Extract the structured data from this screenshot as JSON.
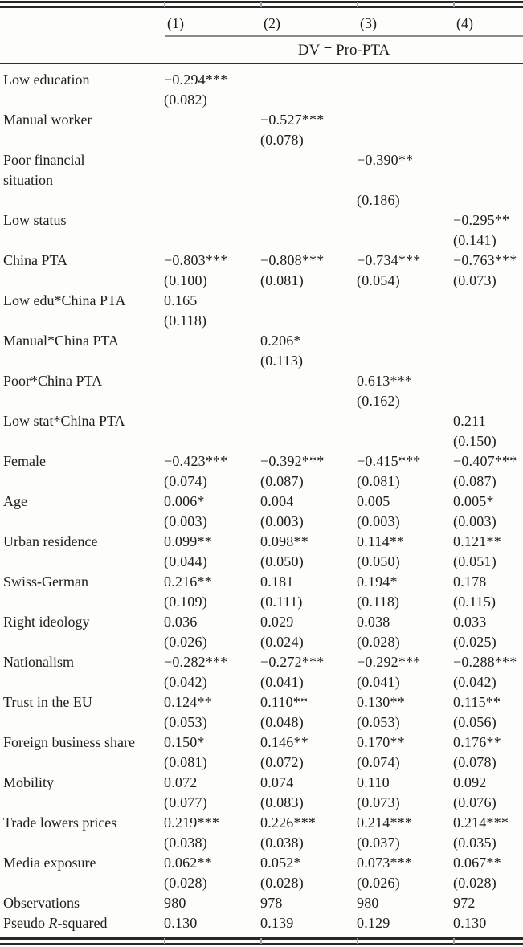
{
  "table": {
    "columns": [
      "(1)",
      "(2)",
      "(3)",
      "(4)"
    ],
    "dv_header": "DV = Pro-PTA",
    "rows": [
      {
        "label": "Low education",
        "est": [
          "−0.294***",
          "",
          "",
          ""
        ],
        "se": [
          "(0.082)",
          "",
          "",
          ""
        ]
      },
      {
        "label": "Manual worker",
        "est": [
          "",
          "−0.527***",
          "",
          ""
        ],
        "se": [
          "",
          "(0.078)",
          "",
          ""
        ]
      },
      {
        "label": "Poor financial",
        "label2": "situation",
        "est": [
          "",
          "",
          "−0.390**",
          ""
        ],
        "se": [
          "",
          "",
          "(0.186)",
          ""
        ]
      },
      {
        "label": "Low status",
        "est": [
          "",
          "",
          "",
          "−0.295**"
        ],
        "se": [
          "",
          "",
          "",
          "(0.141)"
        ]
      },
      {
        "label": "China PTA",
        "est": [
          "−0.803***",
          "−0.808***",
          "−0.734***",
          "−0.763***"
        ],
        "se": [
          "(0.100)",
          "(0.081)",
          "(0.054)",
          "(0.073)"
        ]
      },
      {
        "label": "Low edu*China PTA",
        "est": [
          "0.165",
          "",
          "",
          ""
        ],
        "se": [
          "(0.118)",
          "",
          "",
          ""
        ]
      },
      {
        "label": "Manual*China PTA",
        "est": [
          "",
          "0.206*",
          "",
          ""
        ],
        "se": [
          "",
          "(0.113)",
          "",
          ""
        ]
      },
      {
        "label": "Poor*China PTA",
        "est": [
          "",
          "",
          "0.613***",
          ""
        ],
        "se": [
          "",
          "",
          "(0.162)",
          ""
        ]
      },
      {
        "label": "Low stat*China PTA",
        "est": [
          "",
          "",
          "",
          "0.211"
        ],
        "se": [
          "",
          "",
          "",
          "(0.150)"
        ]
      },
      {
        "label": "Female",
        "est": [
          "−0.423***",
          "−0.392***",
          "−0.415***",
          "−0.407***"
        ],
        "se": [
          "(0.074)",
          "(0.087)",
          "(0.081)",
          "(0.087)"
        ]
      },
      {
        "label": "Age",
        "est": [
          "0.006*",
          "0.004",
          "0.005",
          "0.005*"
        ],
        "se": [
          "(0.003)",
          "(0.003)",
          "(0.003)",
          "(0.003)"
        ]
      },
      {
        "label": "Urban residence",
        "est": [
          "0.099**",
          "0.098**",
          "0.114**",
          "0.121**"
        ],
        "se": [
          "(0.044)",
          "(0.050)",
          "(0.050)",
          "(0.051)"
        ]
      },
      {
        "label": "Swiss-German",
        "est": [
          "0.216**",
          "0.181",
          "0.194*",
          "0.178"
        ],
        "se": [
          "(0.109)",
          "(0.111)",
          "(0.118)",
          "(0.115)"
        ]
      },
      {
        "label": "Right ideology",
        "est": [
          "0.036",
          "0.029",
          "0.038",
          "0.033"
        ],
        "se": [
          "(0.026)",
          "(0.024)",
          "(0.028)",
          "(0.025)"
        ]
      },
      {
        "label": "Nationalism",
        "est": [
          "−0.282***",
          "−0.272***",
          "−0.292***",
          "−0.288***"
        ],
        "se": [
          "(0.042)",
          "(0.041)",
          "(0.041)",
          "(0.042)"
        ]
      },
      {
        "label": "Trust in the EU",
        "est": [
          "0.124**",
          "0.110**",
          "0.130**",
          "0.115**"
        ],
        "se": [
          "(0.053)",
          "(0.048)",
          "(0.053)",
          "(0.056)"
        ]
      },
      {
        "label": "Foreign business share",
        "est": [
          "0.150*",
          "0.146**",
          "0.170**",
          "0.176**"
        ],
        "se": [
          "(0.081)",
          "(0.072)",
          "(0.074)",
          "(0.078)"
        ]
      },
      {
        "label": "Mobility",
        "est": [
          "0.072",
          "0.074",
          "0.110",
          "0.092"
        ],
        "se": [
          "(0.077)",
          "(0.083)",
          "(0.073)",
          "(0.076)"
        ]
      },
      {
        "label": "Trade lowers prices",
        "est": [
          "0.219***",
          "0.226***",
          "0.214***",
          "0.214***"
        ],
        "se": [
          "(0.038)",
          "(0.038)",
          "(0.037)",
          "(0.035)"
        ]
      },
      {
        "label": "Media exposure",
        "est": [
          "0.062**",
          "0.052*",
          "0.073***",
          "0.067**"
        ],
        "se": [
          "(0.028)",
          "(0.028)",
          "(0.026)",
          "(0.028)"
        ]
      },
      {
        "label": "Observations",
        "est": [
          "980",
          "978",
          "980",
          "972"
        ]
      },
      {
        "label": "Pseudo R-squared",
        "label_italic": "R",
        "est": [
          "0.130",
          "0.139",
          "0.129",
          "0.130"
        ]
      }
    ]
  }
}
